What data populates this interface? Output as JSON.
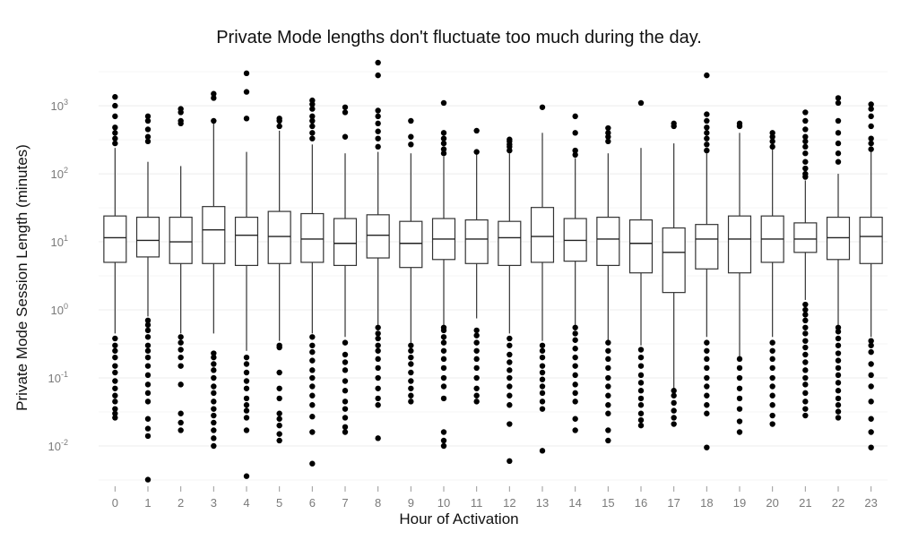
{
  "chart_data": {
    "type": "boxplot",
    "title": "Private Mode lengths don't fluctuate too much during the day.",
    "xlabel": "Hour of Activation",
    "ylabel": "Private Mode Session Length (minutes)",
    "y_scale": "log10",
    "ylim": [
      0.0028,
      5000
    ],
    "y_ticks": [
      {
        "value": 0.01,
        "base": "10",
        "exp": "-2"
      },
      {
        "value": 0.1,
        "base": "10",
        "exp": "-1"
      },
      {
        "value": 1,
        "base": "10",
        "exp": "0"
      },
      {
        "value": 10,
        "base": "10",
        "exp": "1"
      },
      {
        "value": 100,
        "base": "10",
        "exp": "2"
      },
      {
        "value": 1000,
        "base": "10",
        "exp": "3"
      }
    ],
    "grid": true,
    "categories": [
      "0",
      "1",
      "2",
      "3",
      "4",
      "5",
      "6",
      "7",
      "8",
      "9",
      "10",
      "11",
      "12",
      "13",
      "14",
      "15",
      "16",
      "17",
      "18",
      "19",
      "20",
      "21",
      "22",
      "23"
    ],
    "boxes": [
      {
        "q1": 5.0,
        "median": 11.5,
        "q3": 24,
        "whislo": 0.45,
        "whishi": 240,
        "fliers": [
          0.026,
          0.03,
          0.035,
          0.045,
          0.055,
          0.07,
          0.09,
          0.12,
          0.15,
          0.2,
          0.25,
          0.3,
          0.38,
          280,
          330,
          400,
          480,
          700,
          1000,
          1350
        ]
      },
      {
        "q1": 6.0,
        "median": 10.5,
        "q3": 23,
        "whislo": 0.8,
        "whishi": 150,
        "fliers": [
          0.0032,
          0.014,
          0.018,
          0.025,
          0.045,
          0.06,
          0.08,
          0.11,
          0.15,
          0.2,
          0.25,
          0.3,
          0.4,
          0.5,
          0.6,
          0.7,
          300,
          350,
          450,
          600,
          700
        ]
      },
      {
        "q1": 4.8,
        "median": 10.0,
        "q3": 23,
        "whislo": 0.45,
        "whishi": 130,
        "fliers": [
          0.017,
          0.022,
          0.03,
          0.08,
          0.15,
          0.2,
          0.26,
          0.33,
          0.4,
          550,
          600,
          800,
          900
        ]
      },
      {
        "q1": 4.8,
        "median": 15.0,
        "q3": 33,
        "whislo": 0.45,
        "whishi": 550,
        "fliers": [
          0.01,
          0.013,
          0.017,
          0.022,
          0.028,
          0.035,
          0.045,
          0.06,
          0.075,
          0.1,
          0.13,
          0.16,
          0.2,
          0.23,
          600,
          1300,
          1500
        ]
      },
      {
        "q1": 4.5,
        "median": 12.5,
        "q3": 23,
        "whislo": 0.25,
        "whishi": 210,
        "fliers": [
          0.0036,
          0.017,
          0.026,
          0.033,
          0.04,
          0.05,
          0.07,
          0.09,
          0.12,
          0.16,
          0.2,
          650,
          1600,
          3000
        ]
      },
      {
        "q1": 4.8,
        "median": 12.0,
        "q3": 28,
        "whislo": 0.35,
        "whishi": 430,
        "fliers": [
          0.012,
          0.015,
          0.02,
          0.025,
          0.03,
          0.05,
          0.07,
          0.12,
          0.28,
          0.3,
          500,
          600,
          650
        ]
      },
      {
        "q1": 5.0,
        "median": 11.0,
        "q3": 26,
        "whislo": 0.45,
        "whishi": 270,
        "fliers": [
          0.0055,
          0.016,
          0.027,
          0.04,
          0.055,
          0.075,
          0.1,
          0.13,
          0.18,
          0.24,
          0.3,
          0.4,
          330,
          400,
          500,
          600,
          700,
          900,
          1050,
          1200
        ]
      },
      {
        "q1": 4.5,
        "median": 9.5,
        "q3": 22,
        "whislo": 0.4,
        "whishi": 200,
        "fliers": [
          0.016,
          0.019,
          0.026,
          0.035,
          0.045,
          0.065,
          0.09,
          0.13,
          0.17,
          0.22,
          0.33,
          350,
          800,
          950
        ]
      },
      {
        "q1": 5.8,
        "median": 12.5,
        "q3": 25,
        "whislo": 0.6,
        "whishi": 210,
        "fliers": [
          0.013,
          0.04,
          0.05,
          0.07,
          0.1,
          0.14,
          0.19,
          0.25,
          0.3,
          0.38,
          0.45,
          0.55,
          250,
          330,
          420,
          550,
          700,
          850,
          2800,
          4300
        ]
      },
      {
        "q1": 4.2,
        "median": 9.5,
        "q3": 20,
        "whislo": 0.33,
        "whishi": 200,
        "fliers": [
          0.045,
          0.055,
          0.07,
          0.09,
          0.12,
          0.16,
          0.2,
          0.25,
          0.3,
          270,
          350,
          600
        ]
      },
      {
        "q1": 5.5,
        "median": 11.0,
        "q3": 22,
        "whislo": 0.6,
        "whishi": 180,
        "fliers": [
          0.01,
          0.012,
          0.016,
          0.05,
          0.075,
          0.1,
          0.14,
          0.19,
          0.25,
          0.33,
          0.4,
          0.5,
          0.55,
          200,
          230,
          280,
          330,
          400,
          1100
        ]
      },
      {
        "q1": 4.8,
        "median": 11.0,
        "q3": 21,
        "whislo": 0.75,
        "whishi": 200,
        "fliers": [
          0.045,
          0.055,
          0.07,
          0.1,
          0.14,
          0.19,
          0.25,
          0.33,
          0.42,
          0.5,
          210,
          430
        ]
      },
      {
        "q1": 4.5,
        "median": 11.5,
        "q3": 20,
        "whislo": 0.45,
        "whishi": 200,
        "fliers": [
          0.006,
          0.021,
          0.04,
          0.055,
          0.075,
          0.1,
          0.13,
          0.17,
          0.22,
          0.3,
          0.38,
          220,
          250,
          270,
          300,
          320
        ]
      },
      {
        "q1": 5.0,
        "median": 12.0,
        "q3": 32,
        "whislo": 0.35,
        "whishi": 400,
        "fliers": [
          0.0085,
          0.035,
          0.045,
          0.06,
          0.075,
          0.095,
          0.12,
          0.15,
          0.2,
          0.25,
          0.3,
          950
        ]
      },
      {
        "q1": 5.2,
        "median": 10.5,
        "q3": 22,
        "whislo": 0.6,
        "whishi": 170,
        "fliers": [
          0.017,
          0.025,
          0.045,
          0.06,
          0.08,
          0.11,
          0.15,
          0.2,
          0.27,
          0.36,
          0.45,
          0.55,
          190,
          220,
          400,
          700
        ]
      },
      {
        "q1": 4.5,
        "median": 11.0,
        "q3": 23,
        "whislo": 0.35,
        "whishi": 200,
        "fliers": [
          0.012,
          0.017,
          0.03,
          0.04,
          0.055,
          0.075,
          0.1,
          0.14,
          0.19,
          0.25,
          0.33,
          300,
          350,
          400,
          470
        ]
      },
      {
        "q1": 3.5,
        "median": 9.5,
        "q3": 21,
        "whislo": 0.3,
        "whishi": 240,
        "fliers": [
          0.02,
          0.024,
          0.03,
          0.04,
          0.05,
          0.065,
          0.085,
          0.11,
          0.15,
          0.2,
          0.26,
          1100
        ]
      },
      {
        "q1": 1.8,
        "median": 7.0,
        "q3": 16,
        "whislo": 0.07,
        "whishi": 280,
        "fliers": [
          0.021,
          0.026,
          0.033,
          0.043,
          0.055,
          0.065,
          500,
          550
        ]
      },
      {
        "q1": 4.0,
        "median": 11.0,
        "q3": 18,
        "whislo": 0.4,
        "whishi": 200,
        "fliers": [
          0.0095,
          0.03,
          0.04,
          0.055,
          0.075,
          0.1,
          0.14,
          0.19,
          0.25,
          0.33,
          220,
          270,
          330,
          400,
          480,
          600,
          750,
          2800
        ]
      },
      {
        "q1": 3.5,
        "median": 11.0,
        "q3": 24,
        "whislo": 0.2,
        "whishi": 400,
        "fliers": [
          0.016,
          0.023,
          0.035,
          0.05,
          0.07,
          0.1,
          0.14,
          0.19,
          500,
          550
        ]
      },
      {
        "q1": 5.0,
        "median": 11.0,
        "q3": 24,
        "whislo": 0.4,
        "whishi": 240,
        "fliers": [
          0.021,
          0.028,
          0.04,
          0.055,
          0.075,
          0.1,
          0.14,
          0.19,
          0.25,
          0.33,
          250,
          300,
          350,
          400
        ]
      },
      {
        "q1": 7.0,
        "median": 11.0,
        "q3": 19,
        "whislo": 1.4,
        "whishi": 80,
        "fliers": [
          0.028,
          0.035,
          0.045,
          0.06,
          0.08,
          0.1,
          0.13,
          0.17,
          0.22,
          0.28,
          0.35,
          0.45,
          0.55,
          0.7,
          0.85,
          1.0,
          1.2,
          90,
          100,
          120,
          150,
          200,
          250,
          300,
          350,
          450,
          600,
          800
        ]
      },
      {
        "q1": 5.5,
        "median": 11.5,
        "q3": 23,
        "whislo": 0.6,
        "whishi": 100,
        "fliers": [
          0.026,
          0.032,
          0.04,
          0.05,
          0.065,
          0.085,
          0.11,
          0.14,
          0.18,
          0.23,
          0.3,
          0.38,
          0.48,
          0.55,
          150,
          200,
          280,
          400,
          600,
          1100,
          1300
        ]
      },
      {
        "q1": 4.8,
        "median": 12.0,
        "q3": 23,
        "whislo": 0.4,
        "whishi": 210,
        "fliers": [
          0.0095,
          0.016,
          0.025,
          0.045,
          0.075,
          0.11,
          0.16,
          0.24,
          0.3,
          0.35,
          230,
          280,
          330,
          500,
          700,
          900,
          1050
        ]
      }
    ]
  }
}
